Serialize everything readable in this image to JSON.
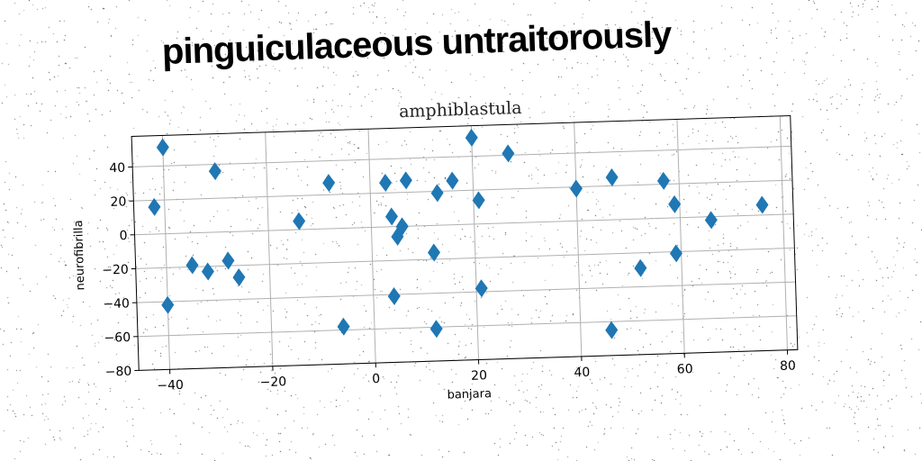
{
  "headline": "pinguiculaceous untraitorously",
  "chart_data": {
    "type": "scatter",
    "title": "amphiblastula",
    "xlabel": "banjara",
    "ylabel": "neurofibrilla",
    "xlim": [
      -46,
      82
    ],
    "ylim": [
      -80,
      58
    ],
    "x_ticks": [
      -40,
      -20,
      0,
      20,
      40,
      60,
      80
    ],
    "y_ticks": [
      -80,
      -60,
      -40,
      -20,
      0,
      20,
      40
    ],
    "grid": true,
    "marker": "diamond",
    "color": "#1f77b4",
    "points": [
      {
        "x": -40,
        "y": 51
      },
      {
        "x": -42,
        "y": 16
      },
      {
        "x": -40,
        "y": -42
      },
      {
        "x": -35,
        "y": -19
      },
      {
        "x": -32,
        "y": -23
      },
      {
        "x": -30,
        "y": 36
      },
      {
        "x": -28,
        "y": -17
      },
      {
        "x": -26,
        "y": -27
      },
      {
        "x": -14,
        "y": 5
      },
      {
        "x": -8,
        "y": 27
      },
      {
        "x": -6,
        "y": -58
      },
      {
        "x": 3,
        "y": 26
      },
      {
        "x": 4,
        "y": 6
      },
      {
        "x": 4,
        "y": -41
      },
      {
        "x": 5,
        "y": -6
      },
      {
        "x": 6,
        "y": 0
      },
      {
        "x": 7,
        "y": 27
      },
      {
        "x": 12,
        "y": -16
      },
      {
        "x": 12,
        "y": -61
      },
      {
        "x": 13,
        "y": 19
      },
      {
        "x": 16,
        "y": 26
      },
      {
        "x": 20,
        "y": 51
      },
      {
        "x": 21,
        "y": -38
      },
      {
        "x": 21,
        "y": 14
      },
      {
        "x": 27,
        "y": 41
      },
      {
        "x": 40,
        "y": 19
      },
      {
        "x": 46,
        "y": -65
      },
      {
        "x": 47,
        "y": 25
      },
      {
        "x": 52,
        "y": -29
      },
      {
        "x": 57,
        "y": 22
      },
      {
        "x": 59,
        "y": 8
      },
      {
        "x": 59,
        "y": -21
      },
      {
        "x": 66,
        "y": -2
      },
      {
        "x": 76,
        "y": 6
      }
    ]
  }
}
